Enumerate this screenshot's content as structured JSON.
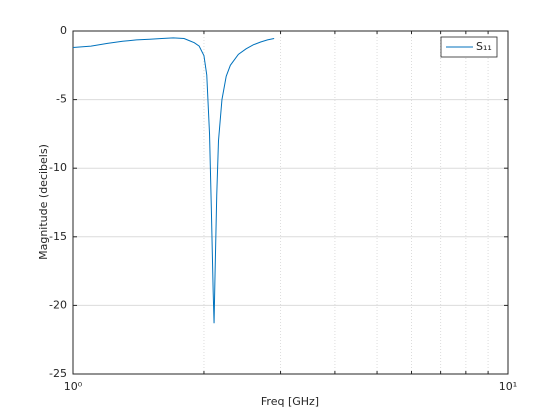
{
  "chart_data": {
    "type": "line",
    "xlabel": "Freq [GHz]",
    "ylabel": "Magnitude (decibels)",
    "xscale": "log",
    "grid": true,
    "legend": "top-right",
    "x": [
      1.0,
      1.1,
      1.2,
      1.3,
      1.4,
      1.5,
      1.6,
      1.7,
      1.8,
      1.85,
      1.9,
      1.95,
      2.0,
      2.03,
      2.06,
      2.08,
      2.1,
      2.11,
      2.12,
      2.14,
      2.16,
      2.2,
      2.25,
      2.3,
      2.4,
      2.5,
      2.6,
      2.7,
      2.8,
      2.9
    ],
    "series": [
      {
        "name": "S₁₁",
        "color": "#0072bd",
        "values": [
          -1.2,
          -1.1,
          -0.9,
          -0.75,
          -0.65,
          -0.6,
          -0.55,
          -0.5,
          -0.55,
          -0.7,
          -0.85,
          -1.1,
          -1.8,
          -3.2,
          -7.5,
          -13,
          -19,
          -21.3,
          -18,
          -12,
          -8,
          -5,
          -3.3,
          -2.5,
          -1.7,
          -1.3,
          -1.0,
          -0.8,
          -0.65,
          -0.55
        ]
      }
    ],
    "xlim": [
      1,
      10
    ],
    "xticks": [
      {
        "value": 1,
        "label": "10⁰"
      },
      {
        "value": 10,
        "label": "10¹"
      }
    ],
    "xminorticks": [
      2,
      3,
      4,
      5,
      6,
      7,
      8,
      9
    ],
    "ylim": [
      -25,
      0
    ],
    "yticks": [
      -25,
      -20,
      -15,
      -10,
      -5,
      0
    ]
  }
}
